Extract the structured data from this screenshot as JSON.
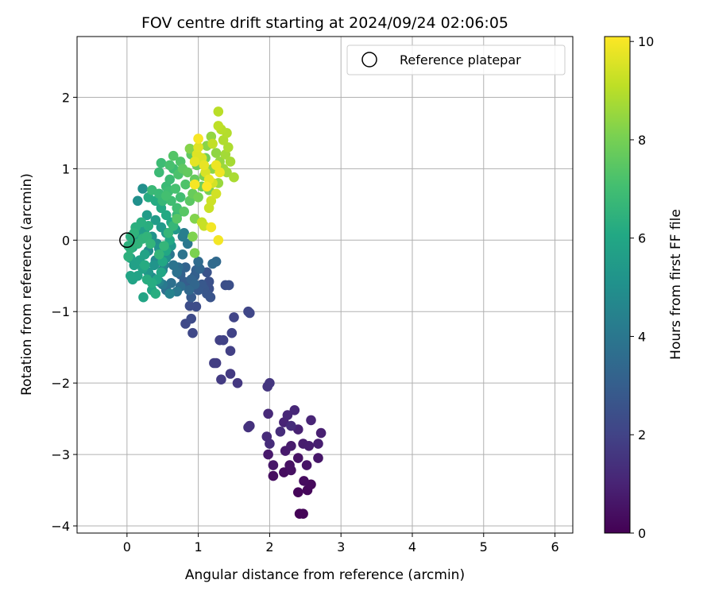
{
  "chart_data": {
    "type": "scatter",
    "title": "FOV centre drift starting at 2024/09/24 02:06:05",
    "xlabel": "Angular distance from reference (arcmin)",
    "ylabel": "Rotation from reference (arcmin)",
    "xlim": [
      -0.7,
      6.25
    ],
    "ylim": [
      -4.1,
      2.85
    ],
    "x_ticks": [
      0,
      1,
      2,
      3,
      4,
      5,
      6
    ],
    "y_ticks": [
      -4,
      -3,
      -2,
      -1,
      0,
      1,
      2
    ],
    "grid": true,
    "legend": {
      "position": "top-right",
      "entries": [
        "Reference platepar"
      ]
    },
    "reference_point": {
      "x": 0,
      "y": 0
    },
    "colorbar": {
      "label": "Hours from first FF file",
      "range": [
        0,
        10.1
      ],
      "ticks": [
        0,
        2,
        4,
        6,
        8,
        10
      ],
      "colormap": "viridis"
    },
    "series": [
      {
        "color_by": "hours",
        "points": [
          [
            2.42,
            -3.83,
            0.05
          ],
          [
            2.47,
            -3.83,
            0.08
          ],
          [
            2.4,
            -3.53,
            0.15
          ],
          [
            2.53,
            -3.5,
            0.18
          ],
          [
            2.58,
            -3.42,
            0.22
          ],
          [
            2.48,
            -3.37,
            0.3
          ],
          [
            2.2,
            -3.25,
            0.35
          ],
          [
            2.05,
            -3.3,
            0.38
          ],
          [
            2.3,
            -3.22,
            0.42
          ],
          [
            2.28,
            -3.15,
            0.45
          ],
          [
            2.4,
            -3.05,
            0.5
          ],
          [
            2.52,
            -3.15,
            0.55
          ],
          [
            2.68,
            -3.05,
            0.6
          ],
          [
            2.05,
            -3.15,
            0.65
          ],
          [
            1.98,
            -3.0,
            0.7
          ],
          [
            2.22,
            -2.95,
            0.72
          ],
          [
            2.3,
            -2.88,
            0.78
          ],
          [
            2.47,
            -2.85,
            0.8
          ],
          [
            2.55,
            -2.88,
            0.83
          ],
          [
            2.68,
            -2.85,
            0.85
          ],
          [
            2.72,
            -2.7,
            0.9
          ],
          [
            2.4,
            -2.65,
            0.95
          ],
          [
            2.2,
            -2.55,
            1.0
          ],
          [
            2.58,
            -2.52,
            1.05
          ],
          [
            2.35,
            -2.38,
            1.1
          ],
          [
            2.25,
            -2.45,
            1.12
          ],
          [
            1.98,
            -2.43,
            1.18
          ],
          [
            1.96,
            -2.75,
            1.22
          ],
          [
            2.0,
            -2.85,
            1.25
          ],
          [
            2.15,
            -2.68,
            1.28
          ],
          [
            2.3,
            -2.6,
            1.3
          ],
          [
            1.72,
            -2.6,
            1.4
          ],
          [
            1.7,
            -2.62,
            1.45
          ],
          [
            1.97,
            -2.05,
            1.55
          ],
          [
            2.0,
            -2.0,
            1.58
          ],
          [
            1.55,
            -2.0,
            1.65
          ],
          [
            1.45,
            -1.87,
            1.7
          ],
          [
            1.32,
            -1.95,
            1.75
          ],
          [
            1.25,
            -1.72,
            1.8
          ],
          [
            1.22,
            -1.72,
            1.82
          ],
          [
            1.45,
            -1.55,
            1.88
          ],
          [
            1.3,
            -1.4,
            1.92
          ],
          [
            1.35,
            -1.4,
            1.95
          ],
          [
            1.47,
            -1.3,
            2.0
          ],
          [
            1.5,
            -1.08,
            2.05
          ],
          [
            1.7,
            -1.0,
            2.1
          ],
          [
            1.72,
            -1.02,
            2.12
          ],
          [
            0.92,
            -1.3,
            2.18
          ],
          [
            0.82,
            -1.17,
            2.22
          ],
          [
            0.9,
            -1.1,
            2.28
          ],
          [
            0.97,
            -0.93,
            2.32
          ],
          [
            0.88,
            -0.92,
            2.35
          ],
          [
            1.38,
            -0.63,
            2.4
          ],
          [
            1.43,
            -0.63,
            2.42
          ],
          [
            1.15,
            -0.68,
            2.48
          ],
          [
            1.15,
            -0.58,
            2.52
          ],
          [
            1.12,
            -0.45,
            2.58
          ],
          [
            1.17,
            -0.8,
            2.62
          ],
          [
            1.12,
            -0.75,
            2.68
          ],
          [
            1.08,
            -0.68,
            2.72
          ],
          [
            1.05,
            -0.62,
            2.78
          ],
          [
            1.0,
            -0.7,
            2.82
          ],
          [
            0.9,
            -0.8,
            2.88
          ],
          [
            0.85,
            -0.65,
            2.92
          ],
          [
            0.8,
            -0.58,
            2.98
          ],
          [
            0.95,
            -0.5,
            3.02
          ],
          [
            0.97,
            -0.42,
            3.08
          ],
          [
            0.75,
            -0.48,
            3.12
          ],
          [
            0.82,
            -0.38,
            3.18
          ],
          [
            0.9,
            -0.55,
            3.22
          ],
          [
            1.02,
            -0.4,
            3.28
          ],
          [
            0.95,
            -0.62,
            3.32
          ],
          [
            0.87,
            -0.7,
            3.38
          ],
          [
            1.25,
            -0.3,
            3.42
          ],
          [
            1.2,
            -0.33,
            3.48
          ],
          [
            1.0,
            -0.3,
            3.52
          ],
          [
            0.72,
            -0.38,
            3.58
          ],
          [
            0.75,
            -0.65,
            3.62
          ],
          [
            0.55,
            -0.7,
            3.68
          ],
          [
            0.62,
            -0.6,
            3.72
          ],
          [
            0.7,
            -0.45,
            3.78
          ],
          [
            0.65,
            -0.35,
            3.82
          ],
          [
            0.78,
            -0.2,
            3.88
          ],
          [
            0.6,
            -0.2,
            3.92
          ],
          [
            0.85,
            -0.05,
            3.98
          ],
          [
            0.7,
            -0.72,
            4.05
          ],
          [
            0.5,
            -0.62,
            4.1
          ],
          [
            0.78,
            0.05,
            4.2
          ],
          [
            0.8,
            0.1,
            4.3
          ],
          [
            0.52,
            -0.35,
            4.4
          ],
          [
            0.6,
            -0.75,
            4.45
          ],
          [
            0.45,
            -0.58,
            4.52
          ],
          [
            0.5,
            -0.42,
            4.6
          ],
          [
            0.35,
            -0.52,
            4.68
          ],
          [
            0.4,
            -0.28,
            4.75
          ],
          [
            0.3,
            -0.15,
            4.82
          ],
          [
            0.42,
            -0.05,
            4.88
          ],
          [
            0.22,
            0.72,
            4.95
          ],
          [
            0.15,
            0.55,
            5.0
          ],
          [
            0.55,
            -0.25,
            5.05
          ],
          [
            0.45,
            -0.12,
            5.1
          ],
          [
            0.35,
            0.05,
            5.15
          ],
          [
            0.38,
            -0.35,
            5.2
          ],
          [
            0.3,
            -0.45,
            5.25
          ],
          [
            0.62,
            -0.08,
            5.3
          ],
          [
            0.68,
            0.15,
            5.35
          ],
          [
            0.55,
            0.1,
            5.4
          ],
          [
            0.48,
            0.18,
            5.45
          ],
          [
            0.4,
            0.28,
            5.5
          ],
          [
            0.28,
            0.35,
            5.55
          ],
          [
            0.25,
            0.15,
            5.6
          ],
          [
            0.18,
            0.1,
            5.62
          ],
          [
            0.12,
            0.0,
            5.65
          ],
          [
            0.08,
            -0.1,
            5.68
          ],
          [
            0.05,
            -0.25,
            5.7
          ],
          [
            0.1,
            -0.35,
            5.72
          ],
          [
            0.18,
            -0.28,
            5.75
          ],
          [
            0.25,
            -0.2,
            5.78
          ],
          [
            0.22,
            -0.4,
            5.8
          ],
          [
            0.15,
            -0.5,
            5.82
          ],
          [
            0.08,
            -0.55,
            5.85
          ],
          [
            0.05,
            -0.5,
            5.88
          ],
          [
            0.23,
            -0.8,
            5.9
          ],
          [
            0.35,
            -0.7,
            5.92
          ],
          [
            0.42,
            -0.55,
            5.95
          ],
          [
            0.48,
            -0.45,
            5.98
          ],
          [
            0.5,
            -0.3,
            6.0
          ],
          [
            0.55,
            -0.15,
            6.02
          ],
          [
            0.6,
            0.0,
            6.05
          ],
          [
            0.62,
            0.25,
            6.08
          ],
          [
            0.55,
            0.35,
            6.1
          ],
          [
            0.48,
            0.45,
            6.12
          ],
          [
            0.4,
            0.55,
            6.15
          ],
          [
            0.3,
            0.6,
            6.18
          ],
          [
            0.25,
            -0.35,
            6.2
          ],
          [
            0.35,
            -0.6,
            6.22
          ],
          [
            0.28,
            -0.55,
            6.25
          ],
          [
            0.4,
            -0.75,
            6.28
          ],
          [
            0.3,
            0.2,
            6.3
          ],
          [
            0.2,
            0.25,
            6.32
          ],
          [
            0.12,
            0.18,
            6.35
          ],
          [
            0.05,
            0.05,
            6.38
          ],
          [
            0.02,
            -0.08,
            6.4
          ],
          [
            0.02,
            -0.23,
            6.42
          ],
          [
            0.05,
            -0.12,
            6.45
          ],
          [
            0.1,
            0.1,
            6.48
          ],
          [
            0.15,
            -0.05,
            6.5
          ],
          [
            0.22,
            0.02,
            6.52
          ],
          [
            0.28,
            0.05,
            6.55
          ],
          [
            0.33,
            -0.05,
            6.58
          ],
          [
            0.45,
            -0.2,
            6.6
          ],
          [
            0.52,
            -0.08,
            6.62
          ],
          [
            0.58,
            0.1,
            6.65
          ],
          [
            0.65,
            0.2,
            6.68
          ],
          [
            0.7,
            0.35,
            6.7
          ],
          [
            0.5,
            0.55,
            6.72
          ],
          [
            0.45,
            0.65,
            6.75
          ],
          [
            0.35,
            0.7,
            6.78
          ],
          [
            0.55,
            0.75,
            6.8
          ],
          [
            0.45,
            0.95,
            6.82
          ],
          [
            0.6,
            0.85,
            6.85
          ],
          [
            0.48,
            1.08,
            6.88
          ],
          [
            0.65,
            1.0,
            6.9
          ],
          [
            0.58,
            0.68,
            6.92
          ],
          [
            0.62,
            0.55,
            6.95
          ],
          [
            0.7,
            0.45,
            6.98
          ],
          [
            0.75,
            0.6,
            7.0
          ],
          [
            0.55,
            0.62,
            7.05
          ],
          [
            0.68,
            0.72,
            7.1
          ],
          [
            0.6,
            1.05,
            7.15
          ],
          [
            0.72,
            0.92,
            7.2
          ],
          [
            0.82,
            0.78,
            7.25
          ],
          [
            0.75,
            1.1,
            7.3
          ],
          [
            0.65,
            1.18,
            7.35
          ],
          [
            0.7,
            0.3,
            7.4
          ],
          [
            0.8,
            0.4,
            7.45
          ],
          [
            0.88,
            0.55,
            7.5
          ],
          [
            0.78,
            1.0,
            7.55
          ],
          [
            0.9,
            1.2,
            7.6
          ],
          [
            0.85,
            0.95,
            7.65
          ],
          [
            0.95,
            0.85,
            7.7
          ],
          [
            0.92,
            0.65,
            7.75
          ],
          [
            0.98,
            1.05,
            7.8
          ],
          [
            1.05,
            0.75,
            7.85
          ],
          [
            1.1,
            1.15,
            7.9
          ],
          [
            1.0,
            0.6,
            7.95
          ],
          [
            1.08,
            0.9,
            8.0
          ],
          [
            1.15,
            0.7,
            8.05
          ],
          [
            0.95,
            -0.18,
            8.1
          ],
          [
            0.92,
            0.05,
            8.15
          ],
          [
            0.95,
            0.3,
            8.2
          ],
          [
            0.88,
            1.28,
            8.25
          ],
          [
            1.12,
            1.32,
            8.3
          ],
          [
            1.2,
            1.0,
            8.35
          ],
          [
            1.25,
            1.22,
            8.4
          ],
          [
            1.18,
            1.45,
            8.45
          ],
          [
            1.3,
            1.1,
            8.5
          ],
          [
            1.28,
            0.8,
            8.55
          ],
          [
            1.35,
            1.0,
            8.6
          ],
          [
            1.4,
            0.95,
            8.65
          ],
          [
            1.38,
            1.2,
            8.7
          ],
          [
            1.45,
            1.1,
            8.75
          ],
          [
            1.5,
            0.88,
            8.8
          ],
          [
            1.42,
            1.3,
            8.85
          ],
          [
            1.35,
            1.4,
            8.9
          ],
          [
            1.4,
            1.5,
            8.95
          ],
          [
            1.32,
            1.55,
            9.0
          ],
          [
            1.28,
            1.8,
            9.05
          ],
          [
            1.28,
            1.6,
            9.1
          ],
          [
            1.2,
            1.35,
            9.15
          ],
          [
            1.05,
            0.25,
            9.2
          ],
          [
            1.08,
            0.2,
            9.25
          ],
          [
            1.15,
            0.45,
            9.3
          ],
          [
            1.18,
            0.55,
            9.35
          ],
          [
            1.25,
            0.65,
            9.4
          ],
          [
            1.2,
            0.8,
            9.45
          ],
          [
            1.1,
            0.95,
            9.5
          ],
          [
            1.05,
            1.15,
            9.55
          ],
          [
            0.98,
            1.2,
            9.6
          ],
          [
            1.0,
            1.3,
            9.65
          ],
          [
            0.95,
            1.1,
            9.7
          ],
          [
            1.08,
            1.05,
            9.75
          ],
          [
            1.15,
            0.85,
            9.8
          ],
          [
            1.25,
            1.05,
            9.85
          ],
          [
            1.3,
            0.95,
            9.88
          ],
          [
            1.18,
            0.18,
            9.92
          ],
          [
            1.28,
            0.0,
            9.95
          ],
          [
            0.95,
            0.78,
            9.98
          ],
          [
            1.0,
            1.42,
            10.0
          ],
          [
            1.12,
            0.75,
            10.05
          ]
        ]
      }
    ]
  }
}
